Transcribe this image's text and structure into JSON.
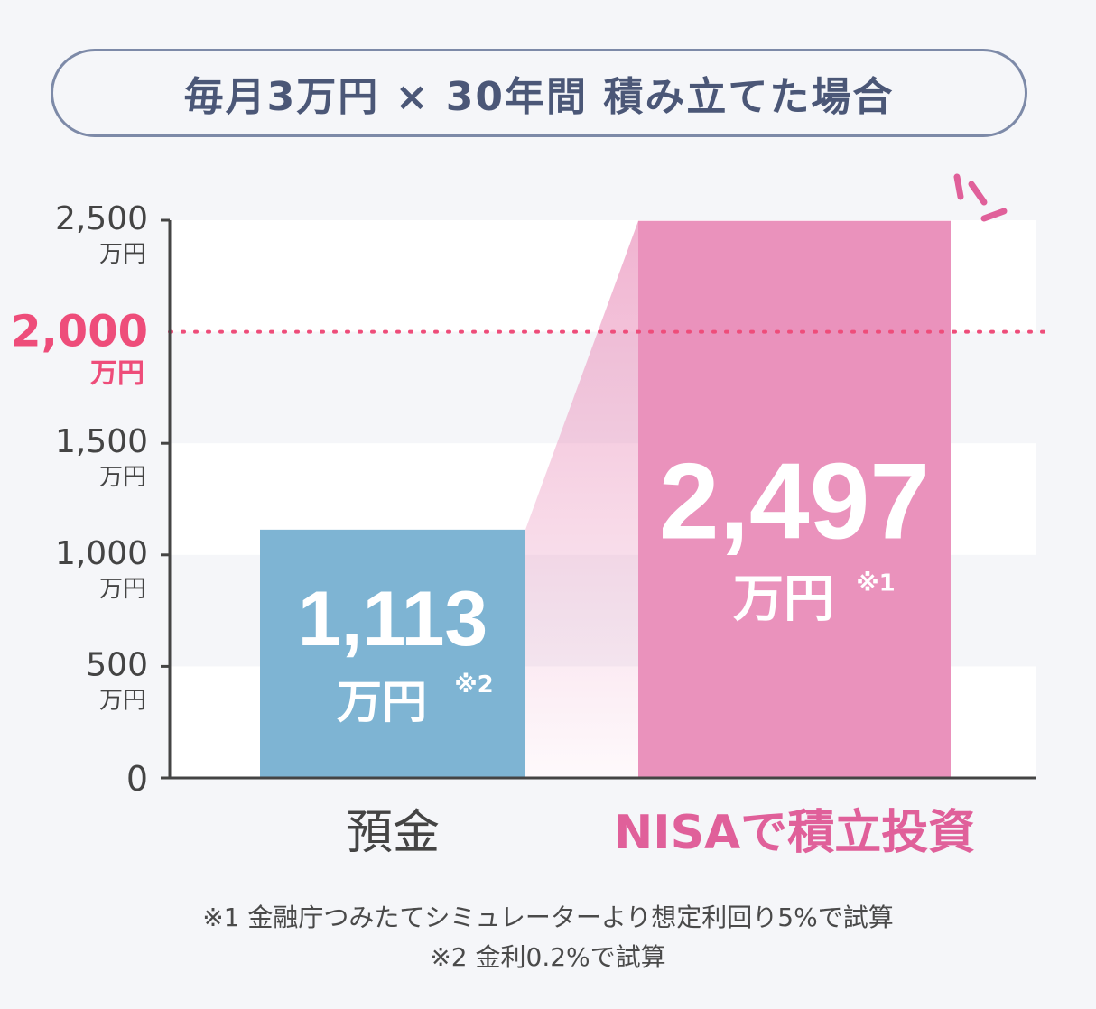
{
  "title": "毎月3万円 × 30年間 積み立てた場合",
  "chart_data": {
    "type": "bar",
    "categories": [
      "預金",
      "NISAで積立投資"
    ],
    "values": [
      1113,
      2497
    ],
    "value_labels": [
      "1,113",
      "2,497"
    ],
    "value_units": [
      "万円",
      "万円"
    ],
    "value_notes": [
      "※2",
      "※1"
    ],
    "ylim": [
      0,
      2500
    ],
    "yticks": [
      0,
      500,
      1000,
      1500,
      2000,
      2500
    ],
    "ytick_labels": [
      "0",
      "500",
      "1,000",
      "1,500",
      "2,000",
      "2,500"
    ],
    "ytick_unit": "万円",
    "highlight_line": {
      "value": 2000,
      "label": "2,000",
      "unit": "万円"
    },
    "colors": {
      "deposit": "#7eb4d3",
      "nisa": "#ea92bc",
      "highlight": "#ee4d7a",
      "nisa_label": "#e0609a",
      "axis": "#444444",
      "band": "#ffffff"
    }
  },
  "footnotes": [
    "※1 金融庁つみたてシミュレーターより想定利回り5%で試算",
    "※2 金利0.2%で試算"
  ]
}
